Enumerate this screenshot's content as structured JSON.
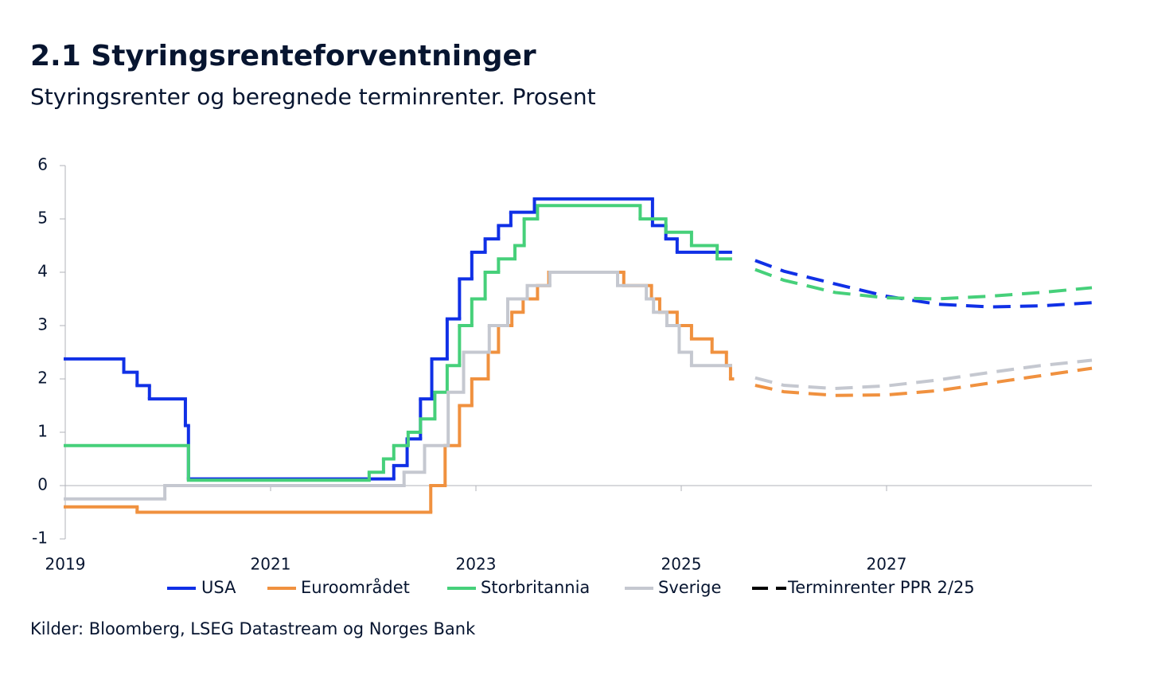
{
  "chart_data": {
    "type": "step-line",
    "title": "2.1 Styringsrenteforventninger",
    "subtitle": "Styringsrenter og beregnede terminrenter. Prosent",
    "source": "Kilder: Bloomberg, LSEG  Datastream og Norges Bank",
    "xlim": [
      2019,
      2029
    ],
    "xticks": [
      2019,
      2021,
      2023,
      2025,
      2027
    ],
    "ylim": [
      -1,
      6
    ],
    "yticks": [
      -1,
      0,
      1,
      2,
      3,
      4,
      5,
      6
    ],
    "series": [
      {
        "name": "USA",
        "color": "#1030e6",
        "x_edges": [
          2019,
          2019.57,
          2019.7,
          2019.82,
          2020.17,
          2020.2,
          2022.2,
          2022.33,
          2022.46,
          2022.57,
          2022.72,
          2022.84,
          2022.96,
          2023.09,
          2023.22,
          2023.34,
          2023.57,
          2024.72,
          2024.85,
          2024.96,
          2025.48
        ],
        "values": [
          2.375,
          2.125,
          1.875,
          1.625,
          1.125,
          0.125,
          0.375,
          0.875,
          1.625,
          2.375,
          3.125,
          3.875,
          4.375,
          4.625,
          4.875,
          5.125,
          5.375,
          4.875,
          4.625,
          4.375
        ]
      },
      {
        "name": "Euroområdet",
        "color": "#f0913f",
        "x_edges": [
          2019,
          2019.7,
          2022.56,
          2022.7,
          2022.84,
          2022.96,
          2023.12,
          2023.22,
          2023.35,
          2023.46,
          2023.6,
          2023.71,
          2024.44,
          2024.71,
          2024.79,
          2024.96,
          2025.1,
          2025.3,
          2025.44,
          2025.48,
          2025.5
        ],
        "values": [
          -0.4,
          -0.5,
          0,
          0.75,
          1.5,
          2.0,
          2.5,
          3.0,
          3.25,
          3.5,
          3.75,
          4.0,
          3.75,
          3.5,
          3.25,
          3.0,
          2.75,
          2.5,
          2.25,
          2.0
        ]
      },
      {
        "name": "Storbritannia",
        "color": "#46d07a",
        "x_edges": [
          2019,
          2020.2,
          2021.96,
          2022.1,
          2022.2,
          2022.34,
          2022.46,
          2022.6,
          2022.72,
          2022.84,
          2022.96,
          2023.09,
          2023.22,
          2023.38,
          2023.47,
          2023.6,
          2024.6,
          2024.85,
          2025.1,
          2025.35,
          2025.48
        ],
        "values": [
          0.75,
          0.1,
          0.25,
          0.5,
          0.75,
          1.0,
          1.25,
          1.75,
          2.25,
          3.0,
          3.5,
          4.0,
          4.25,
          4.5,
          5.0,
          5.25,
          5.0,
          4.75,
          4.5,
          4.25
        ]
      },
      {
        "name": "Sverige",
        "color": "#c5c8d0",
        "x_edges": [
          2019,
          2019.97,
          2022.3,
          2022.5,
          2022.73,
          2022.88,
          2023.13,
          2023.31,
          2023.5,
          2023.72,
          2024.38,
          2024.66,
          2024.73,
          2024.86,
          2024.98,
          2025.1,
          2025.48
        ],
        "values": [
          -0.25,
          0,
          0.25,
          0.75,
          1.75,
          2.5,
          3.0,
          3.5,
          3.75,
          4.0,
          3.75,
          3.5,
          3.25,
          3.0,
          2.5,
          2.25
        ]
      }
    ],
    "forwards": [
      {
        "color": "#1030e6",
        "x": [
          2025.72,
          2026.0,
          2026.5,
          2027.0,
          2027.5,
          2028.0,
          2028.5,
          2029.0
        ],
        "values": [
          4.22,
          4.02,
          3.78,
          3.55,
          3.4,
          3.35,
          3.37,
          3.43
        ]
      },
      {
        "color": "#46d07a",
        "x": [
          2025.72,
          2026.0,
          2026.5,
          2027.0,
          2027.5,
          2028.0,
          2028.5,
          2029.0
        ],
        "values": [
          4.05,
          3.85,
          3.62,
          3.52,
          3.5,
          3.55,
          3.62,
          3.71
        ]
      },
      {
        "color": "#c5c8d0",
        "x": [
          2025.72,
          2026.0,
          2026.5,
          2027.0,
          2027.5,
          2028.0,
          2028.5,
          2029.0
        ],
        "values": [
          2.02,
          1.88,
          1.82,
          1.87,
          1.98,
          2.12,
          2.25,
          2.35
        ]
      },
      {
        "color": "#f0913f",
        "x": [
          2025.72,
          2026.0,
          2026.5,
          2027.0,
          2027.5,
          2028.0,
          2028.5,
          2029.0
        ],
        "values": [
          1.88,
          1.76,
          1.69,
          1.7,
          1.78,
          1.92,
          2.06,
          2.2
        ]
      }
    ],
    "forward_legend": {
      "label": "Terminrenter PPR 2/25",
      "color": "#000000"
    }
  }
}
